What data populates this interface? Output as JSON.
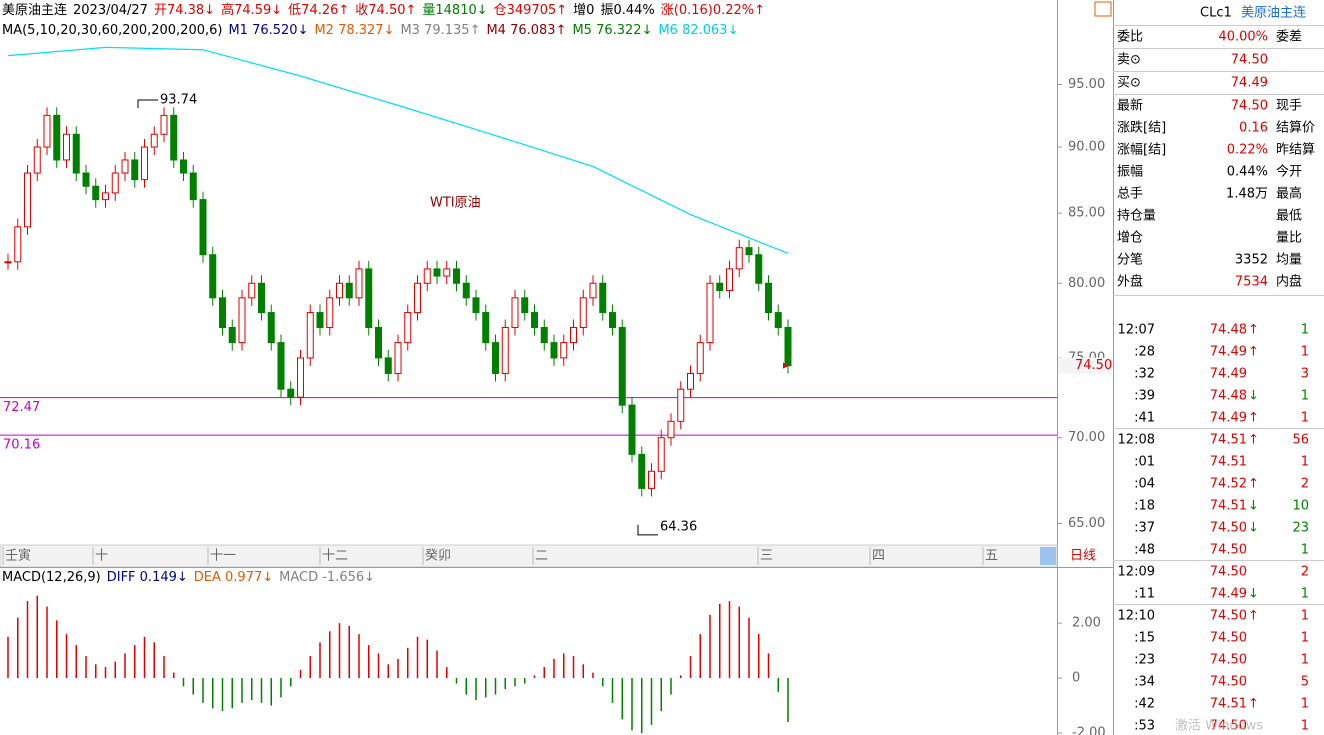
{
  "info_bar": [
    {
      "text": "美原油主连",
      "color": "#000000"
    },
    {
      "text": "2023/04/27",
      "color": "#000000"
    },
    {
      "text": "开74.38↓",
      "color": "#e00000"
    },
    {
      "text": "高74.59↓",
      "color": "#e00000"
    },
    {
      "text": "低74.26↑",
      "color": "#e00000"
    },
    {
      "text": "收74.50↑",
      "color": "#e00000"
    },
    {
      "text": "量14810↓",
      "color": "#008000"
    },
    {
      "text": "仓349705↑",
      "color": "#e00000"
    },
    {
      "text": "增0",
      "color": "#000000"
    },
    {
      "text": "振0.44%",
      "color": "#000000"
    },
    {
      "text": "涨(0.16)0.22%↑",
      "color": "#e00000"
    }
  ],
  "ma_bar": [
    {
      "text": "MA(5,10,20,30,60,200,200,200,6)",
      "color": "#000000"
    },
    {
      "text": "M1 76.520↓",
      "color": "#00008b"
    },
    {
      "text": "M2 78.327↓",
      "color": "#e05a00"
    },
    {
      "text": "M3 79.135↑",
      "color": "#808080"
    },
    {
      "text": "M4 76.083↑",
      "color": "#8b0000"
    },
    {
      "text": "M5 76.322↓",
      "color": "#008000"
    },
    {
      "text": "M6 82.063↓",
      "color": "#00d0e0"
    }
  ],
  "price_chart": {
    "title": "WTI原油",
    "log_scale": true,
    "ylim": [
      63.8,
      102.2
    ],
    "yticks": [
      {
        "value": 65,
        "label": "65.00"
      },
      {
        "value": 70,
        "label": "70.00"
      },
      {
        "value": 75,
        "label": "75.00"
      },
      {
        "value": 80,
        "label": "80.00"
      },
      {
        "value": 85,
        "label": "85.00"
      },
      {
        "value": 90,
        "label": "90.00"
      },
      {
        "value": 95,
        "label": "95.00"
      }
    ],
    "closes": [
      81.5,
      84,
      88,
      90,
      92.5,
      89,
      91,
      88,
      87,
      86,
      86.5,
      88,
      89,
      87.5,
      90,
      91,
      92.5,
      89,
      88,
      86,
      82,
      79,
      77,
      76,
      79,
      80,
      78,
      76,
      73,
      72.5,
      75,
      78,
      77,
      79,
      80,
      79,
      81,
      77,
      75,
      74,
      76,
      78,
      80,
      81,
      80.5,
      81,
      80,
      79,
      78,
      76,
      74,
      77,
      79,
      78,
      77,
      76,
      75,
      76,
      77,
      79,
      80,
      78,
      77,
      72,
      69,
      67,
      68,
      70,
      71,
      73,
      74,
      76,
      80,
      79.5,
      81,
      82.5,
      82,
      80,
      78,
      77,
      74.5
    ],
    "up_color": "#e00000",
    "down_color": "#008000",
    "ma6": {
      "color": "#00e0f0",
      "values": [
        97.4,
        98.1,
        97.9,
        95.7,
        93.3,
        90.9,
        88.5,
        84.9,
        82.1
      ]
    },
    "levels": [
      72.47,
      70.16
    ],
    "level_color": "#cc00cc",
    "high_label": 93.74,
    "low_label": 64.36,
    "last_price": "74.50",
    "time_labels": [
      "壬寅",
      "十",
      "十一",
      "十二",
      "癸卯",
      "二",
      "三",
      "四",
      "五"
    ],
    "period_button": "日线"
  },
  "macd_chart": {
    "legend": [
      {
        "text": "MACD(12,26,9)",
        "color": "#000000"
      },
      {
        "text": "DIFF 0.149↓",
        "color": "#00008b"
      },
      {
        "text": "DEA 0.977↓",
        "color": "#e05a00"
      },
      {
        "text": "MACD -1.656↓",
        "color": "#808080"
      }
    ],
    "ylim": [
      -2.07,
      4.04
    ],
    "yticks": [
      {
        "value": -2,
        "label": "-2.00"
      },
      0,
      {
        "value": 2,
        "label": "2.00"
      }
    ],
    "values": [
      1.5,
      2.2,
      2.8,
      3,
      2.6,
      2.1,
      1.6,
      1.2,
      0.8,
      0.5,
      0.4,
      0.6,
      0.9,
      1.2,
      1.5,
      1.3,
      0.8,
      0.2,
      -0.3,
      -0.6,
      -0.9,
      -1.1,
      -1.2,
      -1.1,
      -0.9,
      -0.8,
      -0.9,
      -1.0,
      -0.7,
      -0.3,
      0.3,
      0.8,
      1.3,
      1.7,
      2.0,
      1.9,
      1.6,
      1.2,
      0.9,
      0.5,
      0.7,
      1.1,
      1.5,
      1.4,
      1.0,
      0.4,
      -0.2,
      -0.6,
      -0.8,
      -0.7,
      -0.6,
      -0.4,
      -0.3,
      -0.2,
      0.1,
      0.4,
      0.7,
      0.9,
      0.8,
      0.5,
      0.2,
      -0.3,
      -0.9,
      -1.5,
      -1.9,
      -2.0,
      -1.7,
      -1.2,
      -0.6,
      0.1,
      0.8,
      1.6,
      2.3,
      2.7,
      2.8,
      2.6,
      2.2,
      1.6,
      0.9,
      -0.5,
      -1.6
    ]
  },
  "quote_panel": {
    "code": "CLc1",
    "name": "美原油主连",
    "top_rows": [
      {
        "label": "委比",
        "value": "40.00%",
        "label2": "委差"
      },
      {
        "label": "卖⊙",
        "value": "74.50"
      },
      {
        "label": "买⊙",
        "value": "74.49"
      }
    ],
    "rows": [
      {
        "label": "最新",
        "value": "74.50",
        "label2": "现手",
        "color": "#e00000"
      },
      {
        "label": "涨跌[结]",
        "value": "0.16",
        "label2": "结算价",
        "color": "#e00000"
      },
      {
        "label": "涨幅[结]",
        "value": "0.22%",
        "label2": "昨结算",
        "color": "#e00000"
      },
      {
        "label": "振幅",
        "value": "0.44%",
        "label2": "今开",
        "color": "#000000"
      },
      {
        "label": "总手",
        "value": "1.48万",
        "label2": "最高",
        "color": "#000000"
      },
      {
        "label": "持仓量",
        "value": null,
        "label2": "最低",
        "color": "#000000"
      },
      {
        "label": "增仓",
        "value": null,
        "label2": "量比",
        "color": "#000000"
      },
      {
        "label": "分笔",
        "value": "3352",
        "label2": "均量",
        "color": "#000000"
      },
      {
        "label": "外盘",
        "value": "7534",
        "label2": "内盘",
        "color": "#e00000"
      }
    ],
    "ticks": [
      {
        "time": "12:07",
        "price": "74.48",
        "arrow": "↑",
        "volume": "1",
        "vol_color": "#008000"
      },
      {
        "time": ":28",
        "price": "74.49",
        "arrow": "↑",
        "volume": "1",
        "vol_color": "#e00000"
      },
      {
        "time": ":32",
        "price": "74.49",
        "arrow": null,
        "volume": "3",
        "vol_color": "#e00000"
      },
      {
        "time": ":39",
        "price": "74.48",
        "arrow": "↓",
        "volume": "1",
        "vol_color": "#008000"
      },
      {
        "time": ":41",
        "price": "74.49",
        "arrow": "↑",
        "volume": "1",
        "vol_color": "#e00000"
      },
      {
        "time": "12:08",
        "price": "74.51",
        "arrow": "↑",
        "volume": "56",
        "vol_color": "#e00000"
      },
      {
        "time": ":01",
        "price": "74.51",
        "arrow": null,
        "volume": "1",
        "vol_color": "#e00000"
      },
      {
        "time": ":04",
        "price": "74.52",
        "arrow": "↑",
        "volume": "2",
        "vol_color": "#e00000"
      },
      {
        "time": ":18",
        "price": "74.51",
        "arrow": "↓",
        "volume": "10",
        "vol_color": "#008000"
      },
      {
        "time": ":37",
        "price": "74.50",
        "arrow": "↓",
        "volume": "23",
        "vol_color": "#008000"
      },
      {
        "time": ":48",
        "price": "74.50",
        "arrow": null,
        "volume": "1",
        "vol_color": "#008000"
      },
      {
        "time": "12:09",
        "price": "74.50",
        "arrow": null,
        "volume": "2",
        "vol_color": "#e00000"
      },
      {
        "time": ":11",
        "price": "74.49",
        "arrow": "↓",
        "volume": "1",
        "vol_color": "#008000"
      },
      {
        "time": "12:10",
        "price": "74.50",
        "arrow": "↑",
        "volume": "1",
        "vol_color": "#e00000"
      },
      {
        "time": ":15",
        "price": "74.50",
        "arrow": null,
        "volume": "1",
        "vol_color": "#e00000"
      },
      {
        "time": ":23",
        "price": "74.50",
        "arrow": null,
        "volume": "1",
        "vol_color": "#e00000"
      },
      {
        "time": ":34",
        "price": "74.50",
        "arrow": null,
        "volume": "5",
        "vol_color": "#e00000"
      },
      {
        "time": ":42",
        "price": "74.51",
        "arrow": "↑",
        "volume": "1",
        "vol_color": "#e00000"
      },
      {
        "time": ":53",
        "price": "74.50",
        "arrow": null,
        "volume": "1",
        "vol_color": "#e00000"
      }
    ]
  },
  "watermark": "激活 Windows"
}
